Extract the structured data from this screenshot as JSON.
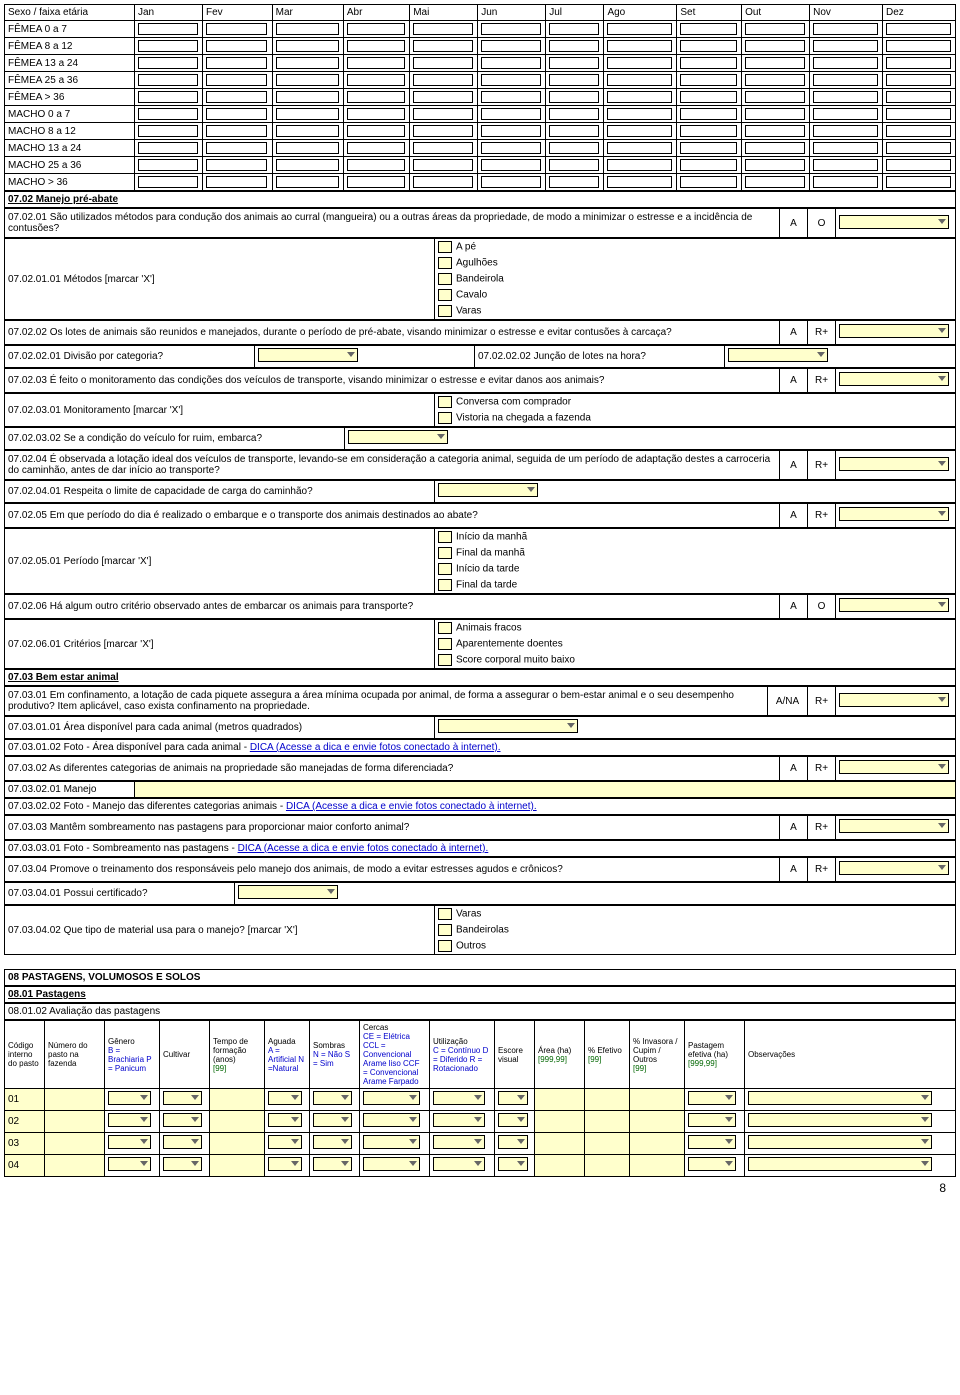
{
  "ageTable": {
    "header": [
      "Sexo / faixa etária",
      "Jan",
      "Fev",
      "Mar",
      "Abr",
      "Mai",
      "Jun",
      "Jul",
      "Ago",
      "Set",
      "Out",
      "Nov",
      "Dez"
    ],
    "rows": [
      "FÊMEA 0 a 7",
      "FÊMEA 8 a 12",
      "FÊMEA 13 a 24",
      "FÊMEA 25 a 36",
      "FÊMEA > 36",
      "MACHO 0 a 7",
      "MACHO 8 a 12",
      "MACHO 13 a 24",
      "MACHO 25 a 36",
      "MACHO > 36"
    ]
  },
  "s0702title": "07.02 Manejo pré-abate",
  "q070201": "07.02.01 São utilizados métodos para condução dos animais ao curral (mangueira) ou a outras áreas da propriedade, de modo a minimizar o estresse e a incidência de contusões?",
  "q070201_codes": {
    "a": "A",
    "b": "O"
  },
  "q07020101": "07.02.01.01 Métodos [marcar 'X']",
  "q07020101_opts": [
    "A pé",
    "Agulhões",
    "Bandeirola",
    "Cavalo",
    "Varas"
  ],
  "q070202": "07.02.02 Os lotes de animais são reunidos e manejados, durante o período de pré-abate, visando minimizar o estresse e evitar contusões à carcaça?",
  "q070202_codes": {
    "a": "A",
    "b": "R+"
  },
  "q07020201": "07.02.02.01 Divisão por categoria?",
  "q07020202": "07.02.02.02 Junção de lotes na hora?",
  "q070203": "07.02.03 É feito o monitoramento das condições dos veículos de transporte, visando minimizar o estresse e evitar danos aos animais?",
  "q070203_codes": {
    "a": "A",
    "b": "R+"
  },
  "q07020301": "07.02.03.01 Monitoramento [marcar 'X']",
  "q07020301_opts": [
    "Conversa com comprador",
    "Vistoria na chegada a fazenda"
  ],
  "q07020302": "07.02.03.02 Se a condição do veículo for ruim, embarca?",
  "q070204": "07.02.04 É observada a lotação ideal dos veículos de transporte, levando-se em consideração a categoria animal, seguida de um período de adaptação destes a carroceria do caminhão, antes de dar início ao transporte?",
  "q070204_codes": {
    "a": "A",
    "b": "R+"
  },
  "q07020401": "07.02.04.01 Respeita o limite de capacidade de carga do caminhão?",
  "q070205": "07.02.05 Em que período do dia é realizado o embarque e o transporte dos animais destinados ao abate?",
  "q070205_codes": {
    "a": "A",
    "b": "R+"
  },
  "q07020501": "07.02.05.01 Período [marcar 'X']",
  "q07020501_opts": [
    "Início da manhã",
    "Final da manhã",
    "Início da tarde",
    "Final da tarde"
  ],
  "q070206": "07.02.06 Há algum outro critério observado antes de embarcar os animais para transporte?",
  "q070206_codes": {
    "a": "A",
    "b": "O"
  },
  "q07020601": "07.02.06.01 Critérios [marcar 'X']",
  "q07020601_opts": [
    "Animais fracos",
    "Aparentemente doentes",
    "Score corporal muito baixo"
  ],
  "s0703title": "07.03 Bem estar animal",
  "q070301": "07.03.01 Em confinamento, a lotação de cada piquete assegura a área mínima ocupada por animal, de forma a assegurar o bem-estar animal e o seu desempenho produtivo? Item aplicável, caso exista confinamento na propriedade.",
  "q070301_codes": {
    "a": "A/NA",
    "b": "R+"
  },
  "q07030101": "07.03.01.01 Área disponível para cada animal (metros quadrados)",
  "q07030102": "07.03.01.02 Foto - Área disponível para cada animal - ",
  "dica": "DICA (Acesse a dica e envie fotos conectado à internet).",
  "q070302": "07.03.02 As diferentes categorias de animais na propriedade são manejadas de forma diferenciada?",
  "q070302_codes": {
    "a": "A",
    "b": "R+"
  },
  "q07030201": "07.03.02.01 Manejo",
  "q07030202": "07.03.02.02 Foto - Manejo das diferentes categorias animais - ",
  "q070303": "07.03.03 Mantêm sombreamento nas pastagens para proporcionar maior conforto animal?",
  "q070303_codes": {
    "a": "A",
    "b": "R+"
  },
  "q07030301": "07.03.03.01 Foto - Sombreamento nas pastagens - ",
  "q070304": "07.03.04 Promove o treinamento dos responsáveis pelo manejo dos animais, de modo a evitar estresses agudos e crônicos?",
  "q070304_codes": {
    "a": "A",
    "b": "R+"
  },
  "q07030401": "07.03.04.01 Possui certificado?",
  "q07030402": "07.03.04.02 Que tipo de material usa para o manejo? [marcar 'X']",
  "q07030402_opts": [
    "Varas",
    "Bandeirolas",
    "Outros"
  ],
  "s08title": "08 PASTAGENS, VOLUMOSOS E SOLOS",
  "s0801title": "08.01 Pastagens",
  "q080102": "08.01.02 Avaliação das pastagens",
  "pastTable": {
    "headers": {
      "c1": "Código interno do pasto",
      "c2": "Número do pasto na fazenda",
      "c3": "Gênero",
      "c3_sub": "B = Brachiaria\nP = Panicum",
      "c4": "Cultivar",
      "c5": "Tempo de formação (anos)",
      "c5_sub": "[99]",
      "c6": "Aguada",
      "c6_sub": "A = Artificial\nN =Natural",
      "c7": "Sombras",
      "c7_sub": "N = Não\nS = Sim",
      "c8": "Cercas",
      "c8_sub": "CE = Elétrica\nCCL = Convencional Arame liso\nCCF = Convencional Arame Farpado",
      "c9": "Utilização",
      "c9_sub": "C = Contínuo\nD = Diferido\nR = Rotacionado",
      "c10": "Escore visual",
      "c11": "Área (ha)",
      "c11_sub": "[999,99]",
      "c12": "% Efetivo",
      "c12_sub": "[99]",
      "c13": "% Invasora / Cupim / Outros",
      "c13_sub": "[99]",
      "c14": "Pastagem efetiva (ha)",
      "c14_sub": "[999,99]",
      "c15": "Observações"
    },
    "rows": [
      "01",
      "02",
      "03",
      "04"
    ]
  },
  "pageNum": "8",
  "colors": {
    "inputBg": "#ffffcc",
    "link": "#0000cc",
    "green": "#006600"
  }
}
